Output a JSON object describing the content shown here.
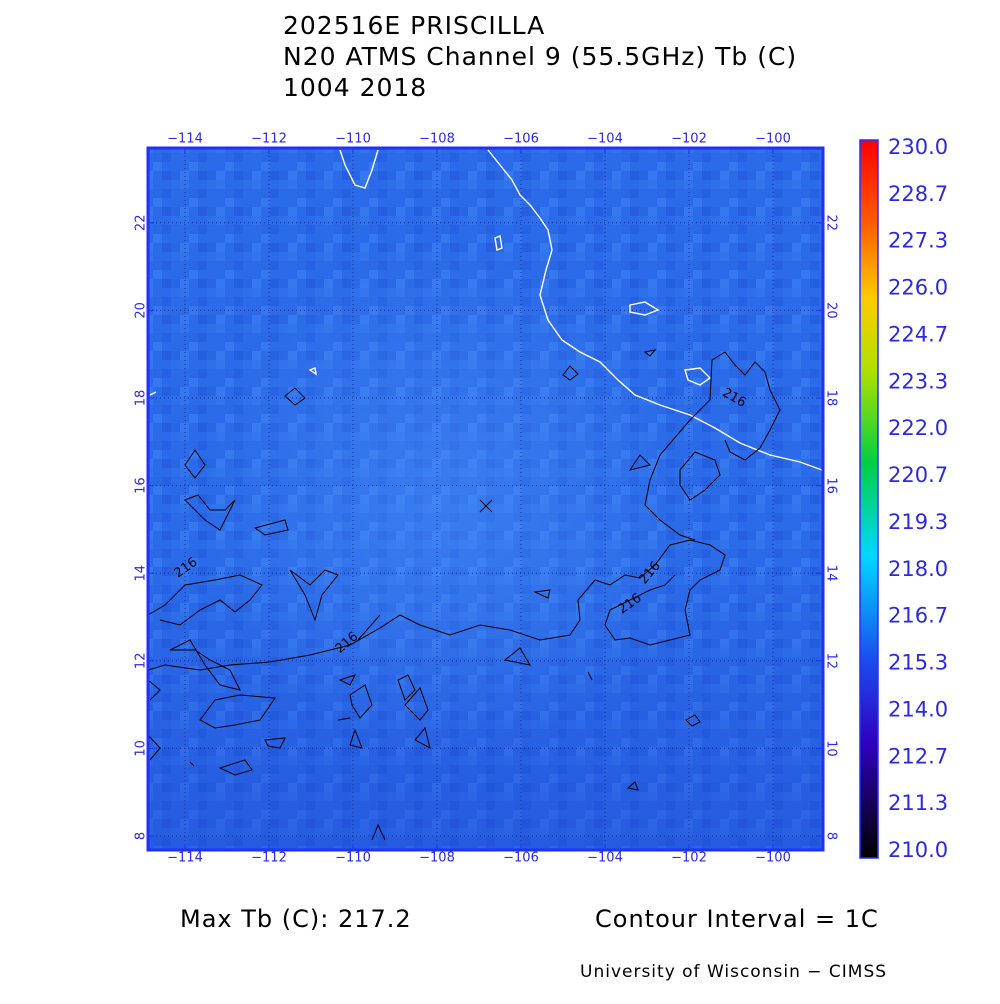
{
  "title": {
    "lines": [
      "202516E PRISCILLA",
      "N20 ATMS Channel 9 (55.5GHz) Tb (C)",
      "1004 2018"
    ]
  },
  "map": {
    "lon_labels": [
      "−114",
      "−112",
      "−110",
      "−108",
      "−106",
      "−104",
      "−102",
      "−100"
    ],
    "lat_labels": [
      "8",
      "10",
      "12",
      "14",
      "16",
      "18",
      "20",
      "22"
    ],
    "contour_labels": [
      "216",
      "216",
      "216",
      "216",
      "216"
    ]
  },
  "colorbar": {
    "labels": [
      "230.0",
      "228.7",
      "227.3",
      "226.0",
      "224.7",
      "223.3",
      "222.0",
      "220.7",
      "219.3",
      "218.0",
      "216.7",
      "215.3",
      "214.0",
      "212.7",
      "211.3",
      "210.0"
    ]
  },
  "footer": {
    "max_tb": "Max Tb (C): 217.2",
    "contour_interval": "Contour Interval = 1C",
    "credit": "University of Wisconsin − CIMSS"
  }
}
